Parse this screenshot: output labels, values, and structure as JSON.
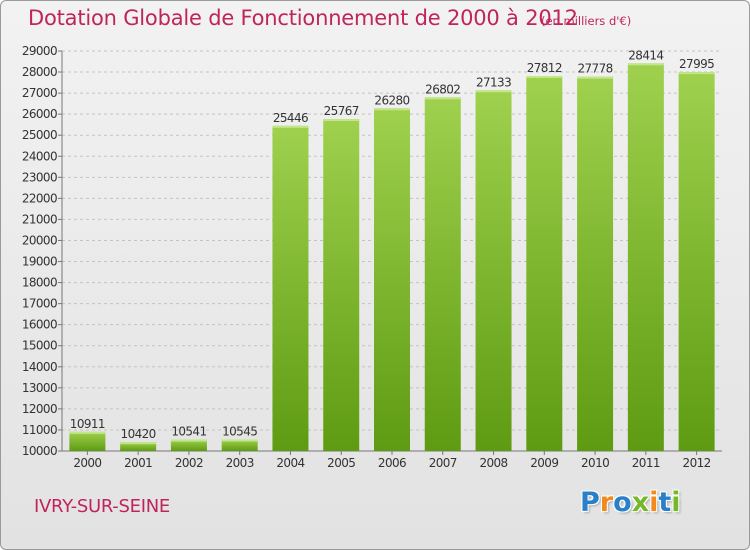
{
  "title": "Dotation Globale de Fonctionnement de 2000 à 2012",
  "unit_note": "(en milliers d'€)",
  "city": "IVRY-SUR-SEINE",
  "logo": {
    "letters": [
      "P",
      "r",
      "o",
      "x",
      "i",
      "t",
      "i"
    ],
    "colors": [
      "#2a7fc9",
      "#f28a1e",
      "#2a7fc9",
      "#76b82a",
      "#f28a1e",
      "#2a7fc9",
      "#76b82a"
    ]
  },
  "colors": {
    "bar_top": "#9fd14e",
    "bar_bottom": "#5e9b12",
    "accent": "#c0245c",
    "grid": "#c4c4c4"
  },
  "chart_data": {
    "type": "bar",
    "categories": [
      "2000",
      "2001",
      "2002",
      "2003",
      "2004",
      "2005",
      "2006",
      "2007",
      "2008",
      "2009",
      "2010",
      "2011",
      "2012"
    ],
    "values": [
      10911,
      10420,
      10541,
      10545,
      25446,
      25767,
      26280,
      26802,
      27133,
      27812,
      27778,
      28414,
      27995
    ],
    "ylim": [
      10000,
      29000
    ],
    "yticks": [
      10000,
      11000,
      12000,
      13000,
      14000,
      15000,
      16000,
      17000,
      18000,
      19000,
      20000,
      21000,
      22000,
      23000,
      24000,
      25000,
      26000,
      27000,
      28000,
      29000
    ],
    "grid": true,
    "xlabel": "",
    "ylabel": ""
  }
}
